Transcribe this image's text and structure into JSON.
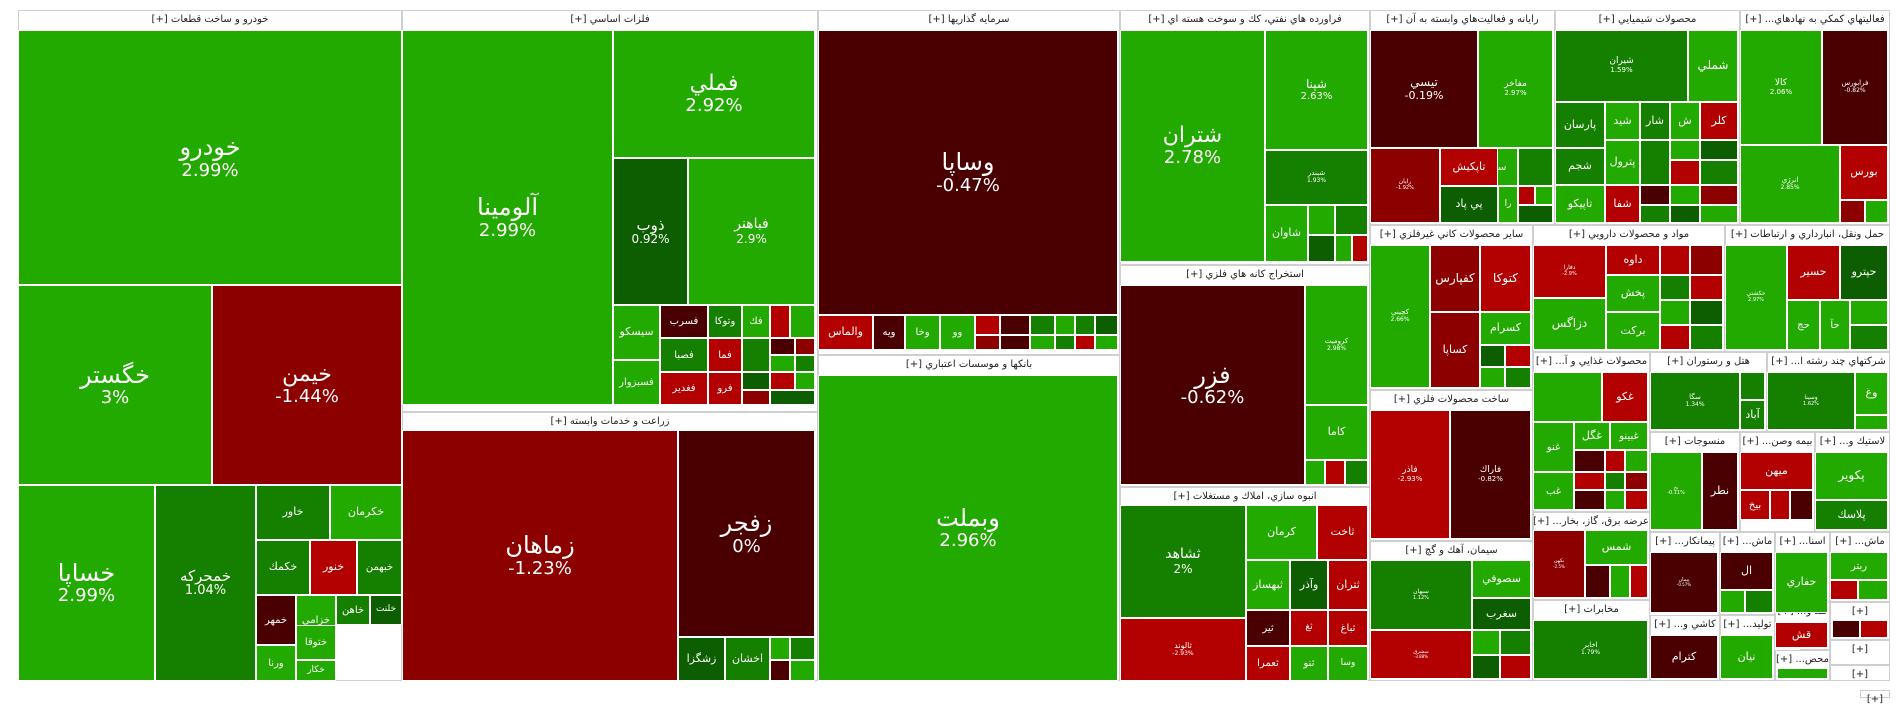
{
  "colors": {
    "strong_green": "#22aa00",
    "green": "#1e9a00",
    "mid_green": "#157f00",
    "dark_green": "#0d5e00",
    "light_red": "#b30000",
    "red": "#8c0000",
    "dark_red": "#4a0000"
  },
  "sectors": [
    {
      "key": "auto",
      "title": "خودرو و ساخت قطعات [+]"
    },
    {
      "key": "metals",
      "title": "فلزات اساسي [+]"
    },
    {
      "key": "agri",
      "title": "زراعت و خدمات وابسته [+]"
    },
    {
      "key": "invest",
      "title": "سرمايه گذاريها [+]"
    },
    {
      "key": "banks",
      "title": "بانكها و موسسات اعتباري [+]"
    },
    {
      "key": "oil",
      "title": "فراورده هاي نفتي، كك و سوخت هسته اي [+]"
    },
    {
      "key": "mining",
      "title": "استخراج كانه هاي فلزي [+]"
    },
    {
      "key": "construction",
      "title": "انبوه سازي، املاك و مستغلات [+]"
    },
    {
      "key": "computer",
      "title": "رايانه و فعاليت‌هاي وابسته به آن [+]"
    },
    {
      "key": "chem",
      "title": "محصولات شيميايي [+]"
    },
    {
      "key": "support",
      "title": "فعاليتهاي كمكي به نهادهاي... [+]"
    },
    {
      "key": "nonmetal",
      "title": "ساير محصولات كاني غيرفلزي [+]"
    },
    {
      "key": "pharma",
      "title": "مواد و محصولات دارويي [+]"
    },
    {
      "key": "transport",
      "title": "حمل ونقل، انبارداري و ارتباطات [+]"
    },
    {
      "key": "metalprod",
      "title": "ساخت محصولات فلزي [+]"
    },
    {
      "key": "food",
      "title": "محصولات غذايي و آ... [+]"
    },
    {
      "key": "hotel",
      "title": "هتل و رستوران [+]"
    },
    {
      "key": "multi",
      "title": "شركتهاي چند رشته ا... [+]"
    },
    {
      "key": "textile",
      "title": "منسوجات [+]"
    },
    {
      "key": "insurance",
      "title": "بيمه وصن... [+]"
    },
    {
      "key": "rubber",
      "title": "لاستيك و... [+]"
    },
    {
      "key": "utility",
      "title": "عرضه برق، گاز، بخار... [+]"
    },
    {
      "key": "cement",
      "title": "سيمان، آهك و گچ [+]"
    },
    {
      "key": "contract",
      "title": "پيمانكار... [+]"
    },
    {
      "key": "machinery",
      "title": "ماش... [+]"
    },
    {
      "key": "wood",
      "title": "اسنا... [+]"
    },
    {
      "key": "machinery2",
      "title": "ماش... [+]"
    },
    {
      "key": "telecom",
      "title": "مخابرات [+]"
    },
    {
      "key": "ceramic",
      "title": "كاشي و... [+]"
    },
    {
      "key": "producer",
      "title": "توليد... [+]"
    },
    {
      "key": "sugar",
      "title": "قند و... [+]"
    },
    {
      "key": "misc1",
      "title": "[+]"
    },
    {
      "key": "misc2",
      "title": "[+]"
    },
    {
      "key": "misc3",
      "title": "[+]"
    },
    {
      "key": "misc4",
      "title": "محص... [+]"
    },
    {
      "key": "misc5",
      "title": "[+]"
    }
  ],
  "chart_data": {
    "type": "treemap",
    "title": "",
    "description_units": "percent daily change",
    "stocks": [
      {
        "symbol": "خودرو",
        "change": "2.99%",
        "value": 2.99,
        "color": "strong_green"
      },
      {
        "symbol": "خگستر",
        "change": "3%",
        "value": 3.0,
        "color": "strong_green"
      },
      {
        "symbol": "خيمن",
        "change": "-1.44%",
        "value": -1.44,
        "color": "red"
      },
      {
        "symbol": "خساپا",
        "change": "2.99%",
        "value": 2.99,
        "color": "strong_green"
      },
      {
        "symbol": "خمحركه",
        "change": "1.04%",
        "value": 1.04,
        "color": "mid_green"
      },
      {
        "symbol": "خاور",
        "change": "",
        "color": "mid_green"
      },
      {
        "symbol": "خكرمان",
        "change": "",
        "color": "strong_green"
      },
      {
        "symbol": "خكمك",
        "change": "",
        "color": "mid_green"
      },
      {
        "symbol": "خنور",
        "change": "",
        "color": "light_red"
      },
      {
        "symbol": "خبهمن",
        "change": "",
        "color": "mid_green"
      },
      {
        "symbol": "خمهر",
        "change": "",
        "color": "dark_red"
      },
      {
        "symbol": "خزامي",
        "change": "",
        "color": "strong_green"
      },
      {
        "symbol": "خاهن",
        "change": "",
        "color": "mid_green"
      },
      {
        "symbol": "خلنت",
        "change": "",
        "color": "dark_green"
      },
      {
        "symbol": "ختوقا",
        "change": "",
        "color": "strong_green"
      },
      {
        "symbol": "ورنا",
        "change": "",
        "color": "strong_green"
      },
      {
        "symbol": "خكار",
        "change": "",
        "color": "strong_green"
      },
      {
        "symbol": "آلومينا",
        "change": "2.99%",
        "value": 2.99,
        "color": "strong_green"
      },
      {
        "symbol": "فملي",
        "change": "2.92%",
        "value": 2.92,
        "color": "strong_green"
      },
      {
        "symbol": "ذوب",
        "change": "0.92%",
        "value": 0.92,
        "color": "dark_green"
      },
      {
        "symbol": "فباهنر",
        "change": "2.9%",
        "value": 2.9,
        "color": "strong_green"
      },
      {
        "symbol": "سيسكو",
        "change": "",
        "color": "strong_green"
      },
      {
        "symbol": "فسرب",
        "change": "",
        "color": "dark_red"
      },
      {
        "symbol": "وتوكا",
        "change": "",
        "color": "mid_green"
      },
      {
        "symbol": "فصبا",
        "change": "",
        "color": "mid_green"
      },
      {
        "symbol": "فسبزوار",
        "change": "",
        "color": "strong_green"
      },
      {
        "symbol": "فغدير",
        "change": "",
        "color": "light_red"
      },
      {
        "symbol": "فما",
        "change": "",
        "color": "light_red"
      },
      {
        "symbol": "فرو",
        "change": "",
        "color": "light_red"
      },
      {
        "symbol": "فك",
        "change": "",
        "color": "strong_green"
      },
      {
        "symbol": "زماهان",
        "change": "-1.23%",
        "value": -1.23,
        "color": "red"
      },
      {
        "symbol": "زفجر",
        "change": "0%",
        "value": 0,
        "color": "dark_red"
      },
      {
        "symbol": "زشگزا",
        "change": "",
        "color": "dark_green"
      },
      {
        "symbol": "اخشان",
        "change": "",
        "color": "mid_green"
      },
      {
        "symbol": "وساپا",
        "change": "-0.47%",
        "value": -0.47,
        "color": "dark_red"
      },
      {
        "symbol": "والماس",
        "change": "",
        "color": "light_red"
      },
      {
        "symbol": "ويه",
        "change": "",
        "color": "dark_red"
      },
      {
        "symbol": "وخا",
        "change": "",
        "color": "strong_green"
      },
      {
        "symbol": "وو",
        "change": "",
        "color": "strong_green"
      },
      {
        "symbol": "وبملت",
        "change": "2.96%",
        "value": 2.96,
        "color": "strong_green"
      },
      {
        "symbol": "شتران",
        "change": "2.78%",
        "value": 2.78,
        "color": "strong_green"
      },
      {
        "symbol": "شپنا",
        "change": "2.63%",
        "value": 2.63,
        "color": "strong_green"
      },
      {
        "symbol": "شبندر",
        "change": "1.93%",
        "value": 1.93,
        "color": "mid_green"
      },
      {
        "symbol": "شاوان",
        "change": "",
        "color": "strong_green"
      },
      {
        "symbol": "فزر",
        "change": "-0.62%",
        "value": -0.62,
        "color": "dark_red"
      },
      {
        "symbol": "كروميت",
        "change": "2.98%",
        "value": 2.98,
        "color": "strong_green"
      },
      {
        "symbol": "كاما",
        "change": "",
        "color": "strong_green"
      },
      {
        "symbol": "ثشاهد",
        "change": "2%",
        "value": 2.0,
        "color": "mid_green"
      },
      {
        "symbol": "كرمان",
        "change": "",
        "color": "strong_green"
      },
      {
        "symbol": "ثاخت",
        "change": "",
        "color": "light_red"
      },
      {
        "symbol": "ثبهساز",
        "change": "",
        "color": "strong_green"
      },
      {
        "symbol": "وآذر",
        "change": "",
        "color": "dark_green"
      },
      {
        "symbol": "ثتران",
        "change": "",
        "color": "light_red"
      },
      {
        "symbol": "ثالوند",
        "change": "-2.93%",
        "value": -2.93,
        "color": "light_red"
      },
      {
        "symbol": "ثير",
        "change": "",
        "color": "dark_red"
      },
      {
        "symbol": "ثغ",
        "change": "",
        "color": "light_red"
      },
      {
        "symbol": "ثباغ",
        "change": "",
        "color": "light_red"
      },
      {
        "symbol": "ثعمرا",
        "change": "",
        "color": "light_red"
      },
      {
        "symbol": "ثنو",
        "change": "",
        "color": "strong_green"
      },
      {
        "symbol": "وسا",
        "change": "",
        "color": "strong_green"
      },
      {
        "symbol": "تيسي",
        "change": "-0.19%",
        "value": -0.19,
        "color": "dark_red"
      },
      {
        "symbol": "مفاخر",
        "change": "2.97%",
        "value": 2.97,
        "color": "strong_green"
      },
      {
        "symbol": "سي",
        "change": "",
        "color": "strong_green"
      },
      {
        "symbol": "تاپكيش",
        "change": "",
        "color": "light_red"
      },
      {
        "symbol": "رايان",
        "change": "-1.92%",
        "value": -1.92,
        "color": "red"
      },
      {
        "symbol": "پي پاد",
        "change": "",
        "color": "dark_green"
      },
      {
        "symbol": "را",
        "change": "",
        "color": "strong_green"
      },
      {
        "symbol": "شيران",
        "change": "1.59%",
        "value": 1.59,
        "color": "mid_green"
      },
      {
        "symbol": "شملي",
        "change": "",
        "color": "strong_green"
      },
      {
        "symbol": "پارسان",
        "change": "",
        "color": "mid_green"
      },
      {
        "symbol": "شيد",
        "change": "",
        "color": "strong_green"
      },
      {
        "symbol": "شار",
        "change": "",
        "color": "mid_green"
      },
      {
        "symbol": "ش",
        "change": "",
        "color": "strong_green"
      },
      {
        "symbol": "كلر",
        "change": "",
        "color": "light_red"
      },
      {
        "symbol": "شجم",
        "change": "",
        "color": "mid_green"
      },
      {
        "symbol": "پترول",
        "change": "",
        "color": "strong_green"
      },
      {
        "symbol": "تاپيكو",
        "change": "",
        "color": "strong_green"
      },
      {
        "symbol": "شفا",
        "change": "",
        "color": "light_red"
      },
      {
        "symbol": "كالا",
        "change": "2.06%",
        "value": 2.06,
        "color": "strong_green"
      },
      {
        "symbol": "فرابورس",
        "change": "-0.82%",
        "value": -0.82,
        "color": "dark_red"
      },
      {
        "symbol": "انرژي",
        "change": "2.85%",
        "value": 2.85,
        "color": "strong_green"
      },
      {
        "symbol": "بورس",
        "change": "",
        "color": "light_red"
      },
      {
        "symbol": "كچيني",
        "change": "2.66%",
        "value": 2.66,
        "color": "strong_green"
      },
      {
        "symbol": "كفپارس",
        "change": "",
        "color": "red"
      },
      {
        "symbol": "كتوكا",
        "change": "",
        "color": "light_red"
      },
      {
        "symbol": "كسرام",
        "change": "",
        "color": "strong_green"
      },
      {
        "symbol": "كساپا",
        "change": "",
        "color": "red"
      },
      {
        "symbol": "دفارا",
        "change": "-2.9%",
        "value": -2.9,
        "color": "light_red"
      },
      {
        "symbol": "داوه",
        "change": "",
        "color": "light_red"
      },
      {
        "symbol": "پخش",
        "change": "",
        "color": "strong_green"
      },
      {
        "symbol": "دزاگس",
        "change": "",
        "color": "strong_green"
      },
      {
        "symbol": "بركت",
        "change": "",
        "color": "strong_green"
      },
      {
        "symbol": "حكشتي",
        "change": "2.97%",
        "value": 2.97,
        "color": "strong_green"
      },
      {
        "symbol": "حسير",
        "change": "",
        "color": "light_red"
      },
      {
        "symbol": "حپترو",
        "change": "",
        "color": "dark_green"
      },
      {
        "symbol": "حج",
        "change": "",
        "color": "strong_green"
      },
      {
        "symbol": "حآ",
        "change": "",
        "color": "strong_green"
      },
      {
        "symbol": "فاذر",
        "change": "-2.93%",
        "value": -2.93,
        "color": "light_red"
      },
      {
        "symbol": "فاراك",
        "change": "-0.82%",
        "value": -0.82,
        "color": "dark_red"
      },
      {
        "symbol": "غكو",
        "change": "",
        "color": "light_red"
      },
      {
        "symbol": "غگل",
        "change": "",
        "color": "strong_green"
      },
      {
        "symbol": "غبينو",
        "change": "",
        "color": "strong_green"
      },
      {
        "symbol": "غنو",
        "change": "",
        "color": "strong_green"
      },
      {
        "symbol": "غب",
        "change": "",
        "color": "strong_green"
      },
      {
        "symbol": "سگا",
        "change": "1.34%",
        "value": 1.34,
        "color": "mid_green"
      },
      {
        "symbol": "آباد",
        "change": "",
        "color": "mid_green"
      },
      {
        "symbol": "وسينا",
        "change": "1.62%",
        "value": 1.62,
        "color": "mid_green"
      },
      {
        "symbol": "وغ",
        "change": "",
        "color": "strong_green"
      },
      {
        "symbol": "نطر",
        "change": "",
        "color": "dark_red"
      },
      {
        "symbol": "نخ",
        "change": "-0.11%",
        "value": -0.11,
        "color": "strong_green"
      },
      {
        "symbol": "ميهن",
        "change": "",
        "color": "light_red"
      },
      {
        "symbol": "بيخ",
        "change": "",
        "color": "light_red"
      },
      {
        "symbol": "پكوير",
        "change": "",
        "color": "strong_green"
      },
      {
        "symbol": "پلاسك",
        "change": "",
        "color": "mid_green"
      },
      {
        "symbol": "بكهن",
        "change": "-2.5%",
        "value": -2.5,
        "color": "red"
      },
      {
        "symbol": "شمس",
        "change": "",
        "color": "strong_green"
      },
      {
        "symbol": "بيستون",
        "change": "-0.2%",
        "value": -0.2,
        "color": "dark_red"
      },
      {
        "symbol": "سصوفي",
        "change": "",
        "color": "strong_green"
      },
      {
        "symbol": "سغرب",
        "change": "",
        "color": "dark_green"
      },
      {
        "symbol": "سبهان",
        "change": "1.12%",
        "value": 1.12,
        "color": "mid_green"
      },
      {
        "symbol": "سشرق",
        "change": "-3.88%",
        "value": -3.88,
        "color": "light_red"
      },
      {
        "symbol": "پيمان",
        "change": "-0.57%",
        "value": -0.57,
        "color": "dark_red"
      },
      {
        "symbol": "ال",
        "change": "",
        "color": "dark_red"
      },
      {
        "symbol": "حفاري",
        "change": "",
        "color": "strong_green"
      },
      {
        "symbol": "ربتر",
        "change": "",
        "color": "strong_green"
      },
      {
        "symbol": "اخابر",
        "change": "1.79%",
        "value": 1.79,
        "color": "mid_green"
      },
      {
        "symbol": "كترام",
        "change": "",
        "color": "dark_red"
      },
      {
        "symbol": "نيان",
        "change": "",
        "color": "strong_green"
      },
      {
        "symbol": "قش",
        "change": "",
        "color": "light_red"
      }
    ]
  }
}
